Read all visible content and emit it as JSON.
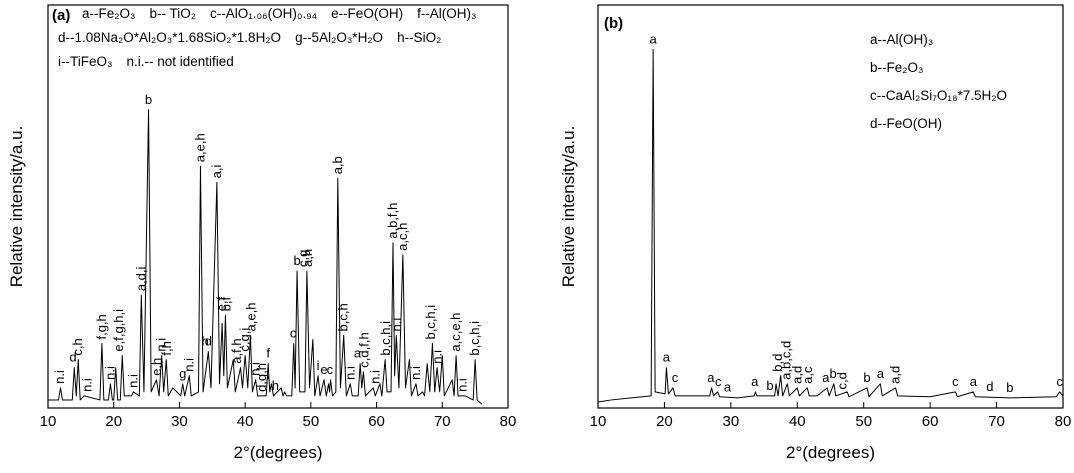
{
  "chart_data": [
    {
      "type": "line",
      "panel_label": "(a)",
      "x_label": "2°(degrees)",
      "y_label": "Relative intensity/a.u.",
      "color": "#000000",
      "xlim": [
        10,
        80
      ],
      "ylim": [
        0,
        100
      ],
      "xticks": [
        10,
        20,
        30,
        40,
        50,
        60,
        70,
        80
      ],
      "legend_lines": [
        [
          "a--Fe₂O₃",
          "b-- TiO₂",
          "c--AlO₁.₀₆(OH)₀.₉₄",
          "e--FeO(OH)",
          "f--Al(OH)₃"
        ],
        [
          "d--1.08Na₂O*Al₂O₃*1.68SiO₂*1.8H₂O",
          "g--5Al₂O₃*H₂O",
          "h--SiO₂"
        ],
        [
          "i--TiFeO₃",
          "n.i.-- not identified"
        ]
      ],
      "x": [
        10,
        11.6,
        11.9,
        12.2,
        13.7,
        14,
        14.3,
        14.6,
        14.9,
        15.5,
        17.9,
        18.2,
        18.5,
        19.2,
        19.5,
        19.8,
        20,
        20.3,
        20.6,
        21,
        21.3,
        21.6,
        22.7,
        23,
        23.9,
        24.2,
        24.6,
        25.3,
        25.7,
        26.5,
        26.9,
        27.3,
        27.6,
        28,
        28.3,
        29,
        30.2,
        30.5,
        30.8,
        31.5,
        31.8,
        32.9,
        33.2,
        33.6,
        34.4,
        34.8,
        35.7,
        36.1,
        36.5,
        36.75,
        37,
        37.3,
        38.2,
        38.5,
        39.3,
        39.6,
        40,
        40.4,
        40.8,
        41.1,
        41.6,
        41.9,
        43.2,
        43.5,
        43.75,
        44,
        44.3,
        45.5,
        45.75,
        46,
        46.3,
        47.1,
        47.4,
        47.6,
        47.9,
        48.3,
        49.1,
        49.4,
        49.8,
        50.3,
        50.6,
        51.1,
        51.4,
        52,
        52.35,
        52.7,
        52.85,
        53,
        53.3,
        53.8,
        54.1,
        54.5,
        55,
        55.4,
        56,
        56.3,
        57.2,
        57.5,
        57.75,
        58,
        58.3,
        59.5,
        59.8,
        60.5,
        60.8,
        61.3,
        61.6,
        62.2,
        62.5,
        62.75,
        63,
        63.4,
        64,
        64.4,
        65,
        65.3,
        66,
        66.3,
        67,
        67.3,
        67.7,
        68.1,
        68.5,
        68.85,
        69.2,
        69.6,
        70,
        70.3,
        71.5,
        71.8,
        72.1,
        72.4,
        73.5,
        74.7,
        75,
        75.3,
        76
      ],
      "values": [
        2,
        2,
        5,
        2,
        2,
        10,
        3,
        12,
        2,
        3,
        2,
        16,
        2,
        2,
        6,
        2,
        2,
        10,
        2,
        2,
        13,
        3,
        3,
        4,
        3,
        28,
        4,
        74,
        4,
        7,
        3,
        13,
        4,
        12,
        3,
        5,
        3,
        6,
        3,
        8,
        3,
        4,
        60,
        4,
        14,
        5,
        56,
        6,
        21,
        8,
        23,
        5,
        12,
        4,
        10,
        5,
        13,
        5,
        18,
        4,
        7,
        3,
        3,
        11,
        4,
        6,
        3,
        5,
        3,
        4,
        3,
        3,
        16,
        5,
        34,
        4,
        4,
        34,
        5,
        17,
        3,
        8,
        3,
        7,
        3,
        6,
        4,
        7,
        3,
        4,
        57,
        5,
        18,
        3,
        6,
        3,
        3,
        11,
        5,
        9,
        3,
        5,
        3,
        6,
        3,
        12,
        4,
        4,
        41,
        8,
        18,
        5,
        38,
        5,
        12,
        3,
        6,
        3,
        4,
        3,
        11,
        4,
        16,
        4,
        10,
        4,
        13,
        3,
        7,
        3,
        13,
        3,
        3,
        2,
        12,
        2,
        1
      ],
      "annotations": [
        {
          "text": "n.i",
          "x": 11.8,
          "vertical": true
        },
        {
          "text": "d",
          "x": 13.8,
          "vertical": false
        },
        {
          "text": "c,h",
          "x": 14.6,
          "vertical": true
        },
        {
          "text": "n.i",
          "x": 16,
          "vertical": true
        },
        {
          "text": "f,g,h",
          "x": 18.2,
          "vertical": true
        },
        {
          "text": "n.i",
          "x": 19.5,
          "vertical": true
        },
        {
          "text": "e,f,g,h,i",
          "x": 20.8,
          "vertical": true
        },
        {
          "text": "n.i",
          "x": 23,
          "vertical": true
        },
        {
          "text": "a,d,i",
          "x": 24.2,
          "vertical": true
        },
        {
          "text": "b",
          "x": 25.3,
          "vertical": false
        },
        {
          "text": "e,h",
          "x": 26.6,
          "vertical": true
        },
        {
          "text": "n.i",
          "x": 27.3,
          "vertical": true
        },
        {
          "text": "f,h",
          "x": 28.1,
          "vertical": true
        },
        {
          "text": "g",
          "x": 30.5,
          "vertical": false
        },
        {
          "text": "n.i",
          "x": 31.5,
          "vertical": true
        },
        {
          "text": "a,e,h",
          "x": 33.2,
          "vertical": true
        },
        {
          "text": "h",
          "x": 33.9,
          "vertical": false
        },
        {
          "text": "d",
          "x": 34.4,
          "vertical": false
        },
        {
          "text": "a,i",
          "x": 35.7,
          "vertical": true
        },
        {
          "text": "e,f",
          "x": 36.5,
          "vertical": true
        },
        {
          "text": "b,f",
          "x": 37.2,
          "vertical": true
        },
        {
          "text": "a,f,h",
          "x": 38.8,
          "vertical": true
        },
        {
          "text": "c,g,i",
          "x": 40,
          "vertical": true
        },
        {
          "text": "a,e,h",
          "x": 41,
          "vertical": true
        },
        {
          "text": "n.i",
          "x": 41.6,
          "vertical": true
        },
        {
          "text": "d,g,h",
          "x": 42.6,
          "vertical": true
        },
        {
          "text": "f",
          "x": 43.5,
          "vertical": false
        },
        {
          "text": "h",
          "x": 44.6,
          "vertical": false
        },
        {
          "text": "c",
          "x": 47.3,
          "vertical": false
        },
        {
          "text": "b",
          "x": 47.9,
          "vertical": false
        },
        {
          "text": "c,g",
          "x": 48.9,
          "vertical": true
        },
        {
          "text": "a,h",
          "x": 49.6,
          "vertical": true
        },
        {
          "text": "i",
          "x": 51.1,
          "vertical": false
        },
        {
          "text": "e",
          "x": 52,
          "vertical": false
        },
        {
          "text": "c",
          "x": 52.9,
          "vertical": false
        },
        {
          "text": "a,b",
          "x": 54.1,
          "vertical": true
        },
        {
          "text": "b,c,h",
          "x": 55,
          "vertical": true
        },
        {
          "text": "n.i",
          "x": 56,
          "vertical": true
        },
        {
          "text": "a",
          "x": 57.1,
          "vertical": false
        },
        {
          "text": "c,d,f,h",
          "x": 58.2,
          "vertical": true
        },
        {
          "text": "n.i",
          "x": 59.8,
          "vertical": true
        },
        {
          "text": "b,c,h,i",
          "x": 61.4,
          "vertical": true
        },
        {
          "text": "a,b,f,h",
          "x": 62.5,
          "vertical": true
        },
        {
          "text": "n.i",
          "x": 63.1,
          "vertical": true
        },
        {
          "text": "a,c,h",
          "x": 64,
          "vertical": true
        },
        {
          "text": "n.i",
          "x": 66,
          "vertical": true
        },
        {
          "text": "b,c,h,i",
          "x": 68.3,
          "vertical": true
        },
        {
          "text": "n.i",
          "x": 69.3,
          "vertical": true
        },
        {
          "text": "a,c,e,h",
          "x": 72.1,
          "vertical": true
        },
        {
          "text": "n.i",
          "x": 73.1,
          "vertical": true
        },
        {
          "text": "b,c,h,i",
          "x": 75,
          "vertical": true
        }
      ]
    },
    {
      "type": "line",
      "panel_label": "(b)",
      "x_label": "2°(degrees)",
      "y_label": "Relative intensity/a.u.",
      "color": "#000000",
      "xlim": [
        10,
        80
      ],
      "ylim": [
        0,
        100
      ],
      "xticks": [
        10,
        20,
        30,
        40,
        50,
        60,
        70,
        80
      ],
      "legend_lines": [
        [
          "a--Al(OH)₃"
        ],
        [
          "b--Fe₂O₃"
        ],
        [
          "c--CaAl₂Si₇O₁₈*7.5H₂O"
        ],
        [
          "d--FeO(OH)"
        ]
      ],
      "x": [
        10,
        12,
        15,
        18,
        18.3,
        18.6,
        20.1,
        20.3,
        20.6,
        21.3,
        21.6,
        26.8,
        27.1,
        27.4,
        28,
        28.3,
        31,
        33.5,
        33.7,
        33.9,
        36.6,
        36.8,
        37.1,
        37.5,
        37.8,
        38.5,
        38.8,
        40,
        40.3,
        41.5,
        41.8,
        43,
        44.5,
        44.8,
        45.5,
        45.8,
        47.5,
        47.8,
        50.5,
        50.8,
        52.5,
        52.8,
        54.8,
        55.1,
        60,
        63.8,
        64.1,
        66.5,
        66.8,
        72,
        79,
        79.5,
        80
      ],
      "values": [
        1.5,
        2,
        2.5,
        3,
        89,
        4,
        3.5,
        10,
        3.5,
        5,
        3,
        3,
        5,
        3,
        4,
        2.8,
        2.5,
        3,
        4,
        3,
        3,
        6,
        3,
        8,
        3,
        6,
        3,
        5,
        3,
        5,
        3,
        3,
        5,
        3,
        6,
        3,
        4,
        2.8,
        5,
        2.8,
        6,
        3,
        5,
        3,
        2.8,
        4,
        2.8,
        4,
        2.8,
        2.5,
        2.8,
        4,
        3
      ],
      "annotations": [
        {
          "text": "a",
          "x": 18.3,
          "vertical": false
        },
        {
          "text": "a",
          "x": 20.3,
          "vertical": false
        },
        {
          "text": "c",
          "x": 21.6,
          "vertical": false
        },
        {
          "text": "a",
          "x": 27,
          "vertical": false
        },
        {
          "text": "c",
          "x": 28.1,
          "vertical": false
        },
        {
          "text": "a",
          "x": 29.5,
          "vertical": false
        },
        {
          "text": "a",
          "x": 33.6,
          "vertical": false
        },
        {
          "text": "b",
          "x": 35.9,
          "vertical": false
        },
        {
          "text": "b,d",
          "x": 37.1,
          "vertical": true
        },
        {
          "text": "a,b,c,d",
          "x": 38.4,
          "vertical": true
        },
        {
          "text": "a,d",
          "x": 40,
          "vertical": true
        },
        {
          "text": "a,c",
          "x": 41.6,
          "vertical": true
        },
        {
          "text": "a",
          "x": 44.3,
          "vertical": false
        },
        {
          "text": "b",
          "x": 45.4,
          "vertical": false
        },
        {
          "text": "c,d",
          "x": 46.8,
          "vertical": true
        },
        {
          "text": "b",
          "x": 50.5,
          "vertical": false
        },
        {
          "text": "a",
          "x": 52.5,
          "vertical": false
        },
        {
          "text": "a,d",
          "x": 54.8,
          "vertical": true
        },
        {
          "text": "c",
          "x": 63.8,
          "vertical": false
        },
        {
          "text": "a",
          "x": 66.5,
          "vertical": false
        },
        {
          "text": "d",
          "x": 69,
          "vertical": false
        },
        {
          "text": "b",
          "x": 72,
          "vertical": false
        },
        {
          "text": "c",
          "x": 79.5,
          "vertical": false
        }
      ]
    }
  ]
}
